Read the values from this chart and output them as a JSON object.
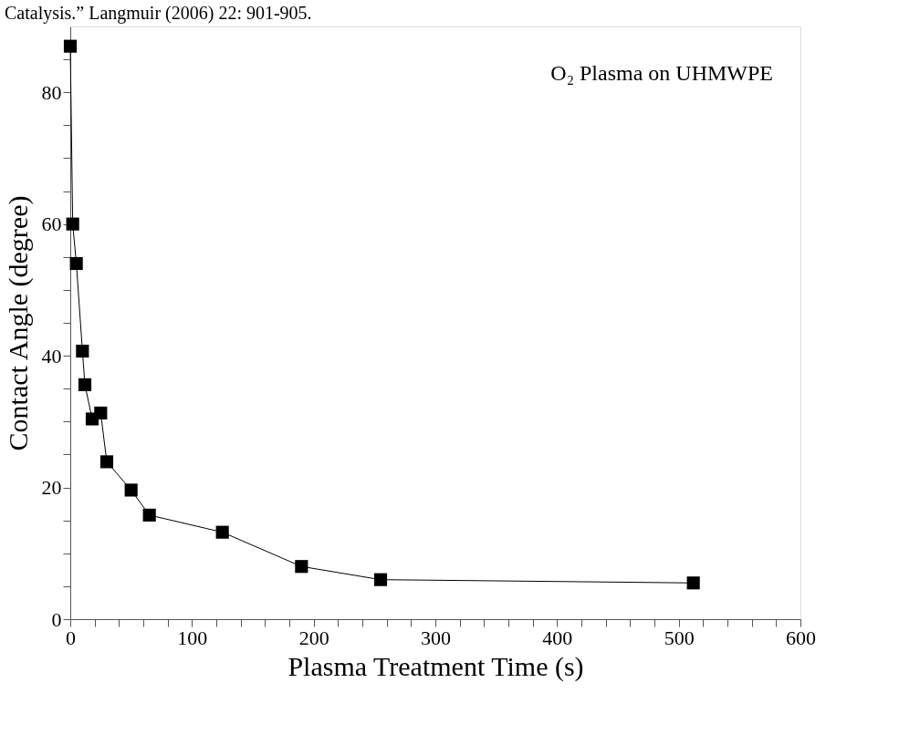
{
  "chart_data": {
    "type": "line",
    "xlabel": "Plasma Treatment Time (s)",
    "ylabel": "Contact Angle (degree)",
    "annotations": [
      "Catalysis.” Langmuir (2006) 22: 901-905.",
      "O₂ Plasma on UHMWPE"
    ],
    "x": [
      0,
      2,
      5,
      10,
      12,
      18,
      25,
      30,
      50,
      65,
      125,
      190,
      255,
      512
    ],
    "series": [
      {
        "color": "#000000",
        "values": [
          87,
          60,
          54,
          40.7,
          35.6,
          30.4,
          31.3,
          23.9,
          19.6,
          15.8,
          13.2,
          8,
          6,
          5.5
        ]
      }
    ],
    "marker": "square",
    "line_style": "solid",
    "grid": false,
    "xlim": [
      0,
      600
    ],
    "ylim": [
      0,
      90
    ],
    "xticks": [
      0,
      {
        "value": 20,
        "label": null
      },
      {
        "value": 40,
        "label": null
      },
      {
        "value": 60,
        "label": null
      },
      {
        "value": 80,
        "label": null
      },
      100,
      {
        "value": 120,
        "label": null
      },
      {
        "value": 140,
        "label": null
      },
      {
        "value": 160,
        "label": null
      },
      {
        "value": 180,
        "label": null
      },
      200,
      {
        "value": 220,
        "label": null
      },
      {
        "value": 240,
        "label": null
      },
      {
        "value": 260,
        "label": null
      },
      {
        "value": 280,
        "label": null
      },
      300,
      {
        "value": 320,
        "label": null
      },
      {
        "value": 340,
        "label": null
      },
      {
        "value": 360,
        "label": null
      },
      {
        "value": 380,
        "label": null
      },
      400,
      {
        "value": 420,
        "label": null
      },
      {
        "value": 440,
        "label": null
      },
      {
        "value": 460,
        "label": null
      },
      {
        "value": 480,
        "label": null
      },
      500,
      {
        "value": 520,
        "label": null
      },
      {
        "value": 540,
        "label": null
      },
      {
        "value": 560,
        "label": null
      },
      {
        "value": 580,
        "label": null
      },
      600
    ],
    "yticks": [
      0,
      {
        "value": 5,
        "label": null
      },
      {
        "value": 10,
        "label": null
      },
      {
        "value": 15,
        "label": null
      },
      20,
      {
        "value": 25,
        "label": null
      },
      {
        "value": 30,
        "label": null
      },
      {
        "value": 35,
        "label": null
      },
      40,
      {
        "value": 45,
        "label": null
      },
      {
        "value": 50,
        "label": null
      },
      {
        "value": 55,
        "label": null
      },
      60,
      {
        "value": 65,
        "label": null
      },
      {
        "value": 70,
        "label": null
      },
      {
        "value": 75,
        "label": null
      },
      80,
      {
        "value": 85,
        "label": null
      }
    ]
  }
}
